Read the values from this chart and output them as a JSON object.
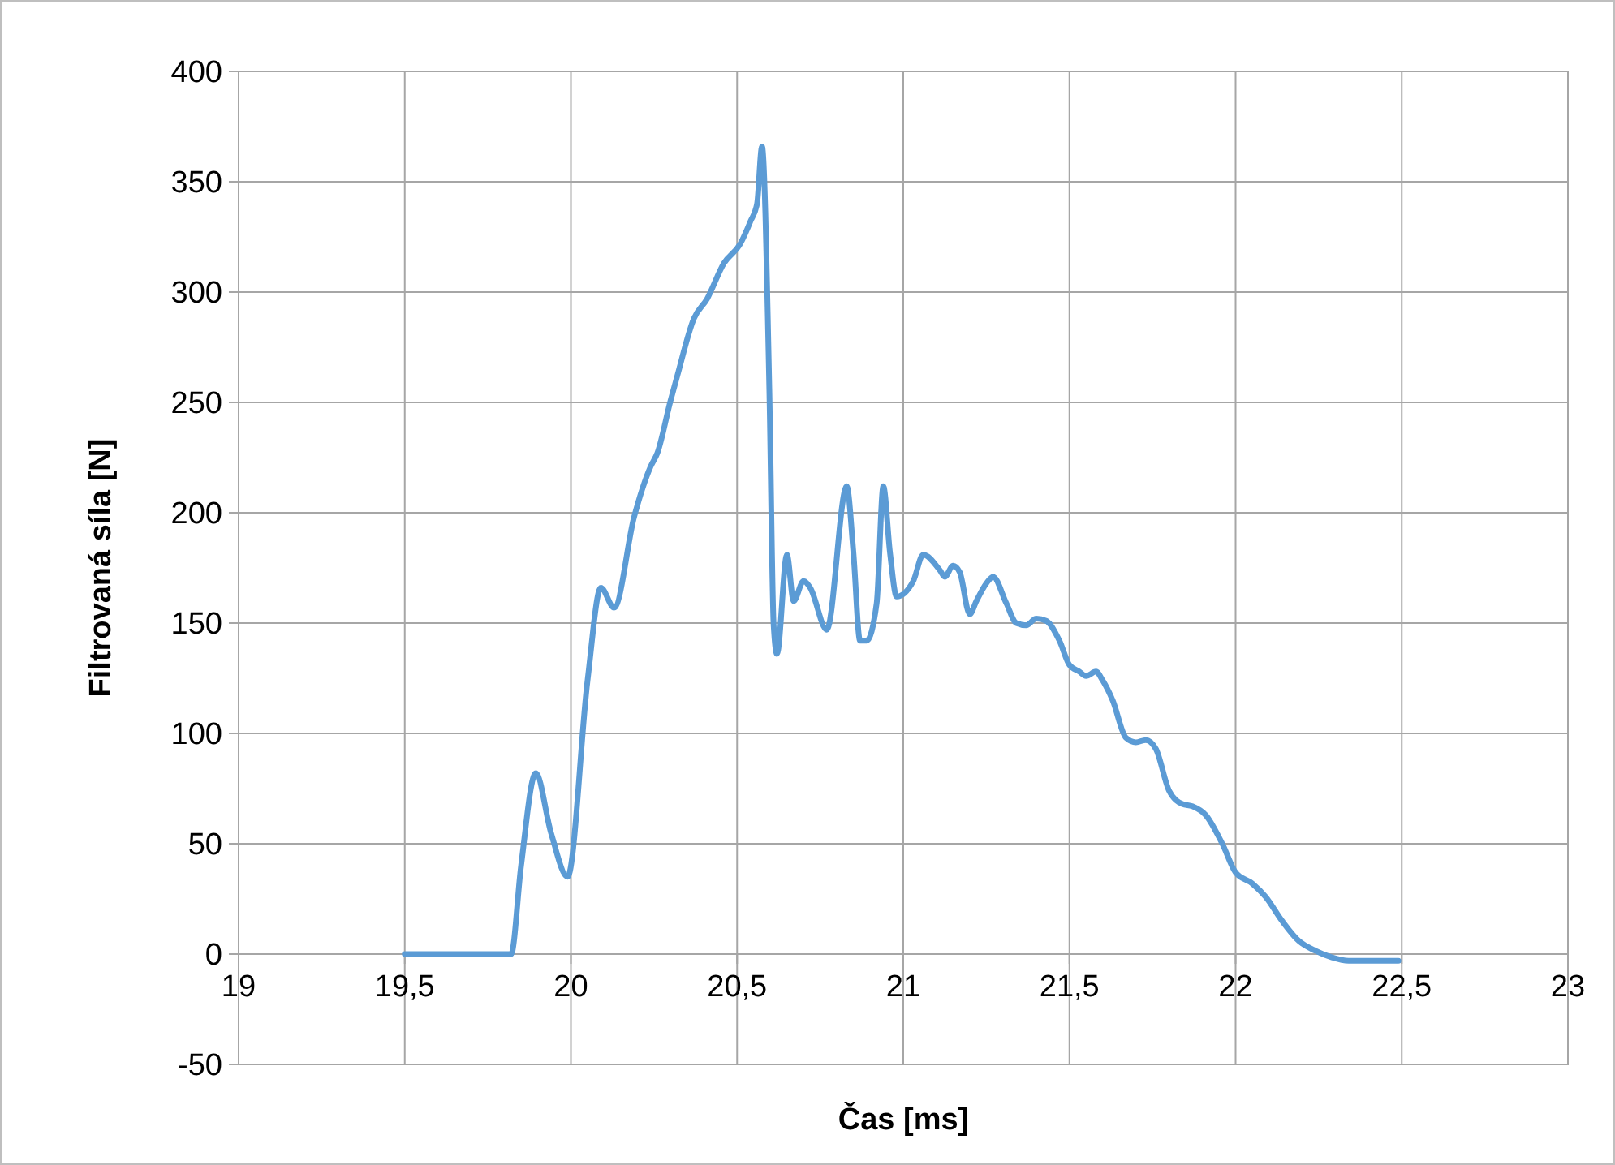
{
  "chart_data": {
    "type": "line",
    "xlabel": "Čas [ms]",
    "ylabel": "Filtrovaná síla [N]",
    "xlim": [
      19,
      23
    ],
    "ylim": [
      -50,
      400
    ],
    "xticks": [
      19,
      {
        "value": 19.5,
        "label": "19,5"
      },
      20,
      {
        "value": 20.5,
        "label": "20,5"
      },
      21,
      {
        "value": 21.5,
        "label": "21,5"
      },
      22,
      {
        "value": 22.5,
        "label": "22,5"
      },
      23
    ],
    "yticks": [
      -50,
      0,
      50,
      100,
      150,
      200,
      250,
      300,
      350,
      400
    ],
    "grid": true,
    "marker": "none",
    "line_style": "solid",
    "series": [
      {
        "color": "#5b9bd5",
        "x": [
          19.5,
          19.82,
          19.85,
          19.894,
          19.94,
          19.99,
          20.05,
          20.09,
          20.13,
          20.19,
          20.24,
          20.26,
          20.3,
          20.32,
          20.37,
          20.41,
          20.46,
          20.51,
          20.54,
          20.56,
          20.575,
          20.597,
          20.61,
          20.62,
          20.65,
          20.67,
          20.7,
          20.72,
          20.77,
          20.83,
          20.85,
          20.87,
          20.89,
          20.92,
          20.94,
          20.96,
          20.98,
          21.03,
          21.06,
          21.11,
          21.125,
          21.15,
          21.17,
          21.2,
          21.22,
          21.25,
          21.27,
          21.31,
          21.34,
          21.37,
          21.4,
          21.43,
          21.47,
          21.5,
          21.53,
          21.55,
          21.58,
          21.6,
          21.63,
          21.67,
          21.7,
          21.73,
          21.76,
          21.8,
          21.84,
          21.87,
          21.91,
          21.96,
          22,
          22.05,
          22.09,
          22.14,
          22.19,
          22.24,
          22.29,
          22.34,
          22.41,
          22.49
        ],
        "values": [
          0,
          0,
          40,
          82,
          55,
          35,
          124,
          166,
          157,
          198,
          221,
          227,
          251,
          262,
          288,
          297,
          313,
          322,
          332,
          340,
          366,
          256,
          149,
          136,
          181,
          160,
          169,
          166,
          147,
          212,
          182,
          142,
          142,
          159,
          212,
          182,
          162,
          169,
          181,
          174,
          171,
          176,
          173,
          154,
          160,
          168,
          171,
          159,
          150,
          149,
          152,
          151,
          142,
          131,
          128,
          126,
          128,
          124,
          115,
          98,
          96,
          97,
          93,
          74,
          68,
          67,
          63,
          50,
          37,
          32,
          26,
          15,
          6,
          1.5,
          -1.5,
          -3,
          -3,
          -3
        ]
      }
    ]
  }
}
